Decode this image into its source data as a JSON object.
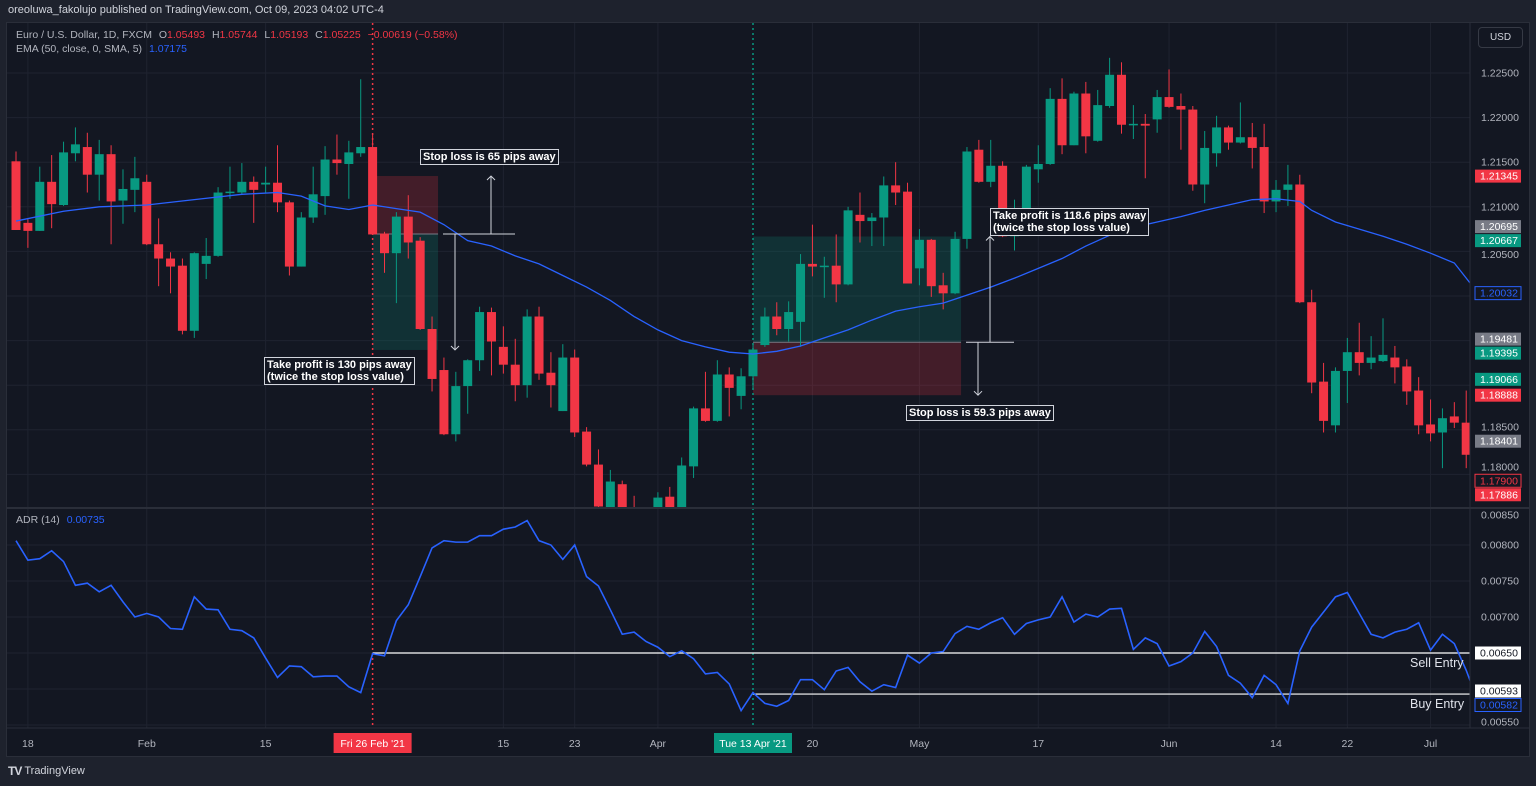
{
  "published_line": "oreoluwa_fakolujo published on TradingView.com, Oct 09, 2023 04:02 UTC-4",
  "legend": {
    "symbol": "Euro / U.S. Dollar, 1D, FXCM",
    "o_label": "O",
    "o_value": "1.05493",
    "h_label": "H",
    "h_value": "1.05744",
    "l_label": "L",
    "l_value": "1.05193",
    "c_label": "C",
    "c_value": "1.05225",
    "change": "−0.00619 (−0.58%)",
    "ema_label": "EMA (50, close, 0, SMA, 5)",
    "ema_value": "1.07175",
    "adr_label": "ADR (14)",
    "adr_value": "0.00735"
  },
  "currency_button": "USD",
  "logo_text": "TradingView",
  "colors": {
    "up": "#089981",
    "down": "#f23645",
    "ema": "#2962ff",
    "adr": "#2962ff",
    "background": "#131722",
    "grid": "#1f2330",
    "axis_text": "#b2b5be"
  },
  "chart_data": {
    "type": "candlestick",
    "panes": [
      "price",
      "indicator"
    ],
    "x_tick_labels": [
      {
        "index": 2,
        "label": "18"
      },
      {
        "index": 12,
        "label": "Feb"
      },
      {
        "index": 22,
        "label": "15"
      },
      {
        "index": 31,
        "label": "Fri 26 Feb '21",
        "highlight": "#f23645"
      },
      {
        "index": 42,
        "label": "15"
      },
      {
        "index": 48,
        "label": "23"
      },
      {
        "index": 55,
        "label": "Apr"
      },
      {
        "index": 63,
        "label": "Tue 13 Apr '21",
        "highlight": "#089981"
      },
      {
        "index": 68,
        "label": "20"
      },
      {
        "index": 77,
        "label": "May"
      },
      {
        "index": 87,
        "label": "17"
      },
      {
        "index": 98,
        "label": "Jun"
      },
      {
        "index": 107,
        "label": "14"
      },
      {
        "index": 113,
        "label": "22"
      },
      {
        "index": 120,
        "label": "Jul"
      }
    ],
    "price_axis": {
      "ylim": [
        1.1783,
        1.2335
      ],
      "ticks": [
        "1.22500",
        "1.22000",
        "1.21500",
        "1.21000",
        "1.20500",
        "1.18500",
        "1.18000"
      ],
      "tick_values": [
        1.225,
        1.22,
        1.215,
        1.21,
        1.205,
        1.185,
        1.18
      ],
      "price_labels": [
        {
          "value": 1.21345,
          "text": "1.21345",
          "bg": "#f23645",
          "fg": "#ffffff"
        },
        {
          "value": 1.20695,
          "text": "1.20695",
          "bg": "#787b86",
          "fg": "#ffffff"
        },
        {
          "value": 1.20667,
          "text": "1.20667",
          "bg": "#089981",
          "fg": "#ffffff"
        },
        {
          "value": 1.20032,
          "text": "1.20032",
          "bg": "#131722",
          "fg": "#2962ff",
          "outline": "#2962ff"
        },
        {
          "value": 1.19481,
          "text": "1.19481",
          "bg": "#787b86",
          "fg": "#ffffff"
        },
        {
          "value": 1.19395,
          "text": "1.19395",
          "bg": "#089981",
          "fg": "#ffffff"
        },
        {
          "value": 1.19066,
          "text": "1.19066",
          "bg": "#089981",
          "fg": "#ffffff"
        },
        {
          "value": 1.18888,
          "text": "1.18888",
          "bg": "#f23645",
          "fg": "#ffffff"
        },
        {
          "value": 1.18401,
          "text": "1.18401",
          "bg": "#787b86",
          "fg": "#ffffff"
        },
        {
          "value": 1.179,
          "text": "1.17900",
          "bg": "#131722",
          "fg": "#f23645",
          "outline": "#f23645"
        },
        {
          "value": 1.17886,
          "text": "1.17886",
          "bg": "#f23645",
          "fg": "#ffffff"
        }
      ]
    },
    "candles_ohlc": [
      [
        1.2151,
        1.2162,
        1.2074,
        1.2074
      ],
      [
        1.2082,
        1.2086,
        1.2054,
        1.2073
      ],
      [
        1.2073,
        1.2145,
        1.2073,
        1.2128
      ],
      [
        1.2128,
        1.2158,
        1.2076,
        1.2103
      ],
      [
        1.2102,
        1.2173,
        1.2101,
        1.2161
      ],
      [
        1.216,
        1.2189,
        1.2151,
        1.217
      ],
      [
        1.2167,
        1.2183,
        1.2116,
        1.2136
      ],
      [
        1.2136,
        1.2175,
        1.2107,
        1.2159
      ],
      [
        1.2159,
        1.2169,
        1.2058,
        1.2106
      ],
      [
        1.2107,
        1.2142,
        1.2081,
        1.212
      ],
      [
        1.2119,
        1.2156,
        1.2094,
        1.2132
      ],
      [
        1.2128,
        1.2136,
        1.2057,
        1.2058
      ],
      [
        1.2058,
        1.2087,
        1.2011,
        1.2042
      ],
      [
        1.2042,
        1.2049,
        1.2003,
        1.2033
      ],
      [
        1.2034,
        1.2042,
        1.1957,
        1.1961
      ],
      [
        1.1961,
        1.2049,
        1.1953,
        1.2048
      ],
      [
        1.2036,
        1.2065,
        1.2019,
        1.2045
      ],
      [
        1.2045,
        1.2122,
        1.2044,
        1.2116
      ],
      [
        1.2116,
        1.2145,
        1.2109,
        1.2117
      ],
      [
        1.2116,
        1.2149,
        1.2114,
        1.2128
      ],
      [
        1.2128,
        1.2134,
        1.2082,
        1.2119
      ],
      [
        1.2125,
        1.2145,
        1.2116,
        1.2127
      ],
      [
        1.2127,
        1.2169,
        1.2094,
        1.2105
      ],
      [
        1.2105,
        1.2107,
        1.2023,
        1.2033
      ],
      [
        1.2033,
        1.2094,
        1.2033,
        1.2088
      ],
      [
        1.2088,
        1.2145,
        1.2082,
        1.2114
      ],
      [
        1.2112,
        1.2168,
        1.2091,
        1.2153
      ],
      [
        1.2153,
        1.2181,
        1.2136,
        1.2149
      ],
      [
        1.2148,
        1.2174,
        1.2109,
        1.2161
      ],
      [
        1.216,
        1.2243,
        1.2156,
        1.2167
      ],
      [
        1.2167,
        1.2181,
        1.2069,
        1.2069
      ],
      [
        1.207,
        1.2072,
        1.2026,
        1.2048
      ],
      [
        1.2048,
        1.2094,
        1.1992,
        1.2089
      ],
      [
        1.2089,
        1.2113,
        1.2042,
        1.206
      ],
      [
        1.2062,
        1.2066,
        1.1962,
        1.1963
      ],
      [
        1.1963,
        1.1977,
        1.1893,
        1.1907
      ],
      [
        1.1917,
        1.1931,
        1.1844,
        1.1845
      ],
      [
        1.1845,
        1.1915,
        1.1837,
        1.1899
      ],
      [
        1.1899,
        1.1929,
        1.1868,
        1.1928
      ],
      [
        1.1928,
        1.1988,
        1.1916,
        1.1982
      ],
      [
        1.1982,
        1.1987,
        1.1911,
        1.1949
      ],
      [
        1.1943,
        1.1966,
        1.1913,
        1.1923
      ],
      [
        1.1923,
        1.1952,
        1.1882,
        1.19
      ],
      [
        1.19,
        1.1985,
        1.1886,
        1.1977
      ],
      [
        1.1977,
        1.1988,
        1.1906,
        1.1913
      ],
      [
        1.1914,
        1.1937,
        1.1875,
        1.19
      ],
      [
        1.1871,
        1.1946,
        1.1871,
        1.1931
      ],
      [
        1.1931,
        1.194,
        1.1842,
        1.1847
      ],
      [
        1.1848,
        1.1853,
        1.1809,
        1.1811
      ],
      [
        1.1811,
        1.1828,
        1.1758,
        1.1764
      ],
      [
        1.176,
        1.1805,
        1.1758,
        1.1792
      ],
      [
        1.1789,
        1.1793,
        1.1758,
        1.1761
      ],
      [
        1.1762,
        1.1776,
        1.1748,
        1.1754
      ],
      [
        1.176,
        1.1762,
        1.1743,
        1.1751
      ],
      [
        1.1762,
        1.178,
        1.1758,
        1.1774
      ],
      [
        1.1775,
        1.1786,
        1.1758,
        1.1762
      ],
      [
        1.1762,
        1.1819,
        1.176,
        1.181
      ],
      [
        1.1809,
        1.1876,
        1.1796,
        1.1874
      ],
      [
        1.1874,
        1.1915,
        1.1859,
        1.186
      ],
      [
        1.186,
        1.1928,
        1.1859,
        1.1912
      ],
      [
        1.1912,
        1.192,
        1.1865,
        1.1897
      ],
      [
        1.1888,
        1.1919,
        1.1873,
        1.191
      ],
      [
        1.191,
        1.1946,
        1.1895,
        1.194
      ],
      [
        1.1945,
        1.1987,
        1.1943,
        1.1977
      ],
      [
        1.1977,
        1.1993,
        1.1956,
        1.1963
      ],
      [
        1.1963,
        1.1994,
        1.1949,
        1.1982
      ],
      [
        1.1971,
        1.2047,
        1.1943,
        1.2036
      ],
      [
        1.2036,
        1.208,
        1.2022,
        1.2033
      ],
      [
        1.2033,
        1.2044,
        1.1998,
        1.2034
      ],
      [
        1.2034,
        1.2069,
        1.1993,
        1.2013
      ],
      [
        1.2013,
        1.21,
        1.2012,
        1.2096
      ],
      [
        1.2091,
        1.2116,
        1.206,
        1.2084
      ],
      [
        1.2084,
        1.2093,
        1.2056,
        1.2088
      ],
      [
        1.2088,
        1.2134,
        1.2056,
        1.2124
      ],
      [
        1.2124,
        1.215,
        1.2102,
        1.2116
      ],
      [
        1.2117,
        1.2127,
        1.2014,
        1.2014
      ],
      [
        1.2031,
        1.2075,
        1.2012,
        1.2063
      ],
      [
        1.2063,
        1.2064,
        1.1999,
        1.2011
      ],
      [
        1.2012,
        1.2026,
        1.1985,
        1.2003
      ],
      [
        1.2003,
        1.2072,
        1.2002,
        1.2064
      ],
      [
        1.2064,
        1.2167,
        1.2053,
        1.2162
      ],
      [
        1.2164,
        1.2175,
        1.2127,
        1.2128
      ],
      [
        1.2128,
        1.2175,
        1.2122,
        1.2146
      ],
      [
        1.2146,
        1.2151,
        1.2066,
        1.2067
      ],
      [
        1.2067,
        1.2108,
        1.2051,
        1.2083
      ],
      [
        1.2083,
        1.2147,
        1.2068,
        1.2145
      ],
      [
        1.2142,
        1.2169,
        1.2127,
        1.2148
      ],
      [
        1.2148,
        1.2233,
        1.2147,
        1.2221
      ],
      [
        1.2221,
        1.2244,
        1.2159,
        1.2169
      ],
      [
        1.2169,
        1.2229,
        1.2169,
        1.2227
      ],
      [
        1.2227,
        1.224,
        1.216,
        1.2179
      ],
      [
        1.2174,
        1.2231,
        1.2173,
        1.2214
      ],
      [
        1.2213,
        1.2267,
        1.2211,
        1.2248
      ],
      [
        1.2248,
        1.2262,
        1.2182,
        1.2192
      ],
      [
        1.2192,
        1.2214,
        1.2176,
        1.2193
      ],
      [
        1.2193,
        1.2204,
        1.2132,
        1.2191
      ],
      [
        1.2198,
        1.2231,
        1.2183,
        1.2223
      ],
      [
        1.2223,
        1.2254,
        1.2211,
        1.2212
      ],
      [
        1.2213,
        1.2227,
        1.2164,
        1.2209
      ],
      [
        1.2209,
        1.2213,
        1.2118,
        1.2125
      ],
      [
        1.2125,
        1.2185,
        1.2104,
        1.2166
      ],
      [
        1.216,
        1.2202,
        1.2145,
        1.2189
      ],
      [
        1.2189,
        1.2191,
        1.2164,
        1.2172
      ],
      [
        1.2172,
        1.2217,
        1.2171,
        1.2178
      ],
      [
        1.2178,
        1.2194,
        1.2143,
        1.2166
      ],
      [
        1.2167,
        1.2193,
        1.2093,
        1.2106
      ],
      [
        1.2106,
        1.213,
        1.2094,
        1.2119
      ],
      [
        1.2119,
        1.2147,
        1.2101,
        1.2125
      ],
      [
        1.2125,
        1.2136,
        1.1992,
        1.1993
      ],
      [
        1.1993,
        1.2007,
        1.1891,
        1.1903
      ],
      [
        1.1904,
        1.1925,
        1.1847,
        1.186
      ],
      [
        1.1855,
        1.192,
        1.1847,
        1.1916
      ],
      [
        1.1916,
        1.1953,
        1.188,
        1.1937
      ],
      [
        1.1937,
        1.197,
        1.1911,
        1.1925
      ],
      [
        1.1925,
        1.1955,
        1.1918,
        1.1931
      ],
      [
        1.1927,
        1.1975,
        1.1926,
        1.1934
      ],
      [
        1.1931,
        1.1944,
        1.1902,
        1.192
      ],
      [
        1.1921,
        1.1929,
        1.1878,
        1.1893
      ],
      [
        1.1894,
        1.1909,
        1.1845,
        1.1855
      ],
      [
        1.1856,
        1.1884,
        1.1837,
        1.1846
      ],
      [
        1.1847,
        1.1874,
        1.1807,
        1.1863
      ],
      [
        1.1865,
        1.1881,
        1.1852,
        1.1858
      ],
      [
        1.1858,
        1.1894,
        1.1807,
        1.1822
      ],
      [
        1.1822,
        1.1827,
        1.1782,
        1.1789
      ]
    ],
    "ema": [
      [
        1,
        1.2084
      ],
      [
        5,
        1.2095
      ],
      [
        8,
        1.21
      ],
      [
        12,
        1.2102
      ],
      [
        16,
        1.2108
      ],
      [
        20,
        1.2114
      ],
      [
        23,
        1.2116
      ],
      [
        25,
        1.2112
      ],
      [
        27,
        1.2101
      ],
      [
        29,
        1.2097
      ],
      [
        31,
        1.2102
      ],
      [
        33,
        1.2098
      ],
      [
        35,
        1.2094
      ],
      [
        37,
        1.208
      ],
      [
        39,
        1.2062
      ],
      [
        41,
        1.2056
      ],
      [
        43,
        1.2045
      ],
      [
        45,
        1.2036
      ],
      [
        47,
        1.2023
      ],
      [
        49,
        1.201
      ],
      [
        51,
        1.1995
      ],
      [
        53,
        1.1977
      ],
      [
        55,
        1.1962
      ],
      [
        57,
        1.195
      ],
      [
        59,
        1.1943
      ],
      [
        61,
        1.1937
      ],
      [
        63,
        1.1935
      ],
      [
        65,
        1.1938
      ],
      [
        67,
        1.1944
      ],
      [
        69,
        1.1953
      ],
      [
        71,
        1.1962
      ],
      [
        73,
        1.1973
      ],
      [
        75,
        1.1983
      ],
      [
        77,
        1.1988
      ],
      [
        79,
        1.1992
      ],
      [
        81,
        1.2001
      ],
      [
        83,
        1.201
      ],
      [
        85,
        1.202
      ],
      [
        87,
        1.2031
      ],
      [
        89,
        1.2042
      ],
      [
        91,
        1.2056
      ],
      [
        93,
        1.2068
      ],
      [
        95,
        1.2077
      ],
      [
        97,
        1.2083
      ],
      [
        99,
        1.2089
      ],
      [
        101,
        1.2096
      ],
      [
        103,
        1.2102
      ],
      [
        105,
        1.2108
      ],
      [
        107,
        1.2109
      ],
      [
        109,
        1.2106
      ],
      [
        110,
        1.2096
      ],
      [
        112,
        1.2083
      ],
      [
        114,
        1.2075
      ],
      [
        116,
        1.2067
      ],
      [
        118,
        1.2058
      ],
      [
        120,
        1.2048
      ],
      [
        122,
        1.2037
      ],
      [
        124,
        1.2003
      ]
    ],
    "positions": [
      {
        "type": "short",
        "start_index": 31,
        "end_index": 36,
        "entry": 1.20695,
        "stop": 1.21345,
        "target": 1.19395
      },
      {
        "type": "long",
        "start_index": 63,
        "end_index": 80,
        "entry": 1.19481,
        "stop": 1.18888,
        "target": 1.20667
      }
    ],
    "annotations": [
      {
        "id": "short-sl",
        "text": "Stop loss is 65 pips away"
      },
      {
        "id": "short-tp",
        "line1": "Take profit is 130 pips away",
        "line2": "(twice the stop loss value)"
      },
      {
        "id": "long-tp",
        "line1": "Take profit is 118.6 pips away",
        "line2": "(twice the stop loss value)"
      },
      {
        "id": "long-sl",
        "text": "Stop loss is 59.3 pips away"
      }
    ],
    "indicator": {
      "name": "ADR (14)",
      "ylim": [
        0.00545,
        0.00852
      ],
      "ticks": [
        "0.00850",
        "0.00800",
        "0.00750",
        "0.00700",
        "0.00550"
      ],
      "tick_values": [
        0.0085,
        0.008,
        0.0075,
        0.007,
        0.0055
      ],
      "values": [
        0.00806,
        0.00779,
        0.00781,
        0.00792,
        0.00777,
        0.00744,
        0.00747,
        0.00735,
        0.00744,
        0.00721,
        0.007,
        0.00705,
        0.007,
        0.00684,
        0.00683,
        0.00728,
        0.00711,
        0.0071,
        0.00683,
        0.00681,
        0.00671,
        0.00643,
        0.00616,
        0.00632,
        0.00631,
        0.00617,
        0.00618,
        0.00618,
        0.00603,
        0.00595,
        0.00649,
        0.00646,
        0.00695,
        0.00717,
        0.00756,
        0.00796,
        0.00806,
        0.00804,
        0.00804,
        0.00813,
        0.00813,
        0.00822,
        0.00825,
        0.00834,
        0.00806,
        0.008,
        0.0078,
        0.008,
        0.00756,
        0.00743,
        0.0071,
        0.00676,
        0.00679,
        0.00666,
        0.00658,
        0.00645,
        0.00653,
        0.00642,
        0.00621,
        0.00623,
        0.00607,
        0.0057,
        0.00595,
        0.0058,
        0.00576,
        0.00584,
        0.00613,
        0.00613,
        0.00599,
        0.00625,
        0.0063,
        0.0061,
        0.00597,
        0.00606,
        0.00602,
        0.00647,
        0.00636,
        0.0065,
        0.00652,
        0.00677,
        0.00687,
        0.00683,
        0.00692,
        0.00699,
        0.00676,
        0.00691,
        0.00696,
        0.007,
        0.00728,
        0.00693,
        0.00704,
        0.007,
        0.00711,
        0.00712,
        0.00655,
        0.00671,
        0.00663,
        0.00632,
        0.00638,
        0.0065,
        0.0068,
        0.00659,
        0.00619,
        0.00608,
        0.00588,
        0.00619,
        0.00606,
        0.0058,
        0.00653,
        0.00686,
        0.00707,
        0.00728,
        0.00734,
        0.00705,
        0.00676,
        0.00671,
        0.00679,
        0.00683,
        0.00692,
        0.00654,
        0.00676,
        0.00663,
        0.00626,
        0.00582
      ],
      "levels": [
        {
          "value": 0.0065,
          "text": "0.00650",
          "label": "Sell Entry",
          "start_index": 31
        },
        {
          "value": 0.00593,
          "text": "0.00593",
          "label": "Buy Entry",
          "start_index": 63
        }
      ],
      "last_value_label": {
        "value": 0.00582,
        "text": "0.00582"
      }
    }
  }
}
